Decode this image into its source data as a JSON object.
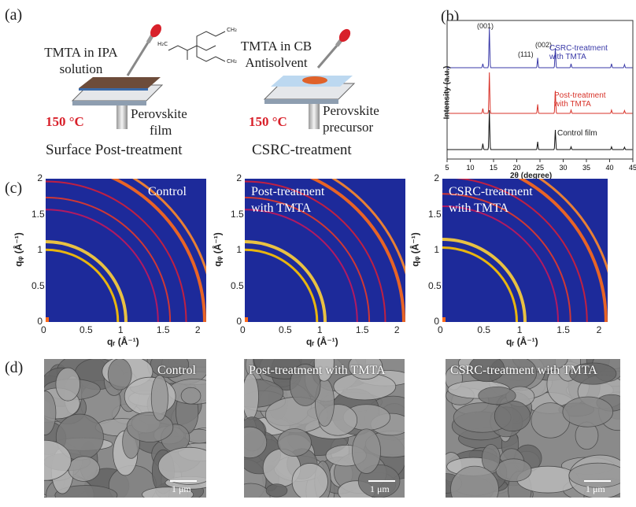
{
  "panel_labels": {
    "a": "(a)",
    "b": "(b)",
    "c": "(c)",
    "d": "(d)"
  },
  "schematic": {
    "left": {
      "solution_line1": "TMTA in IPA",
      "solution_line2": "solution",
      "film_line1": "Perovskite",
      "film_line2": "film",
      "temperature": "150 °C",
      "method": "Surface Post-treatment"
    },
    "right": {
      "antisolvent_line1": "TMTA in CB",
      "antisolvent_line2": "Antisolvent",
      "precursor_line1": "Perovskite",
      "precursor_line2": "precursor",
      "temperature": "150 °C",
      "method": "CSRC-treatment"
    },
    "molecule_labels": {
      "m1": "H₂C",
      "m2": "CH₂",
      "m3": "CH₂"
    }
  },
  "xrd": {
    "ylabel": "Intensity (a.u.)",
    "xlabel": "2θ (degree)",
    "x_ticks": [
      "5",
      "10",
      "15",
      "20",
      "25",
      "30",
      "35",
      "40",
      "45"
    ],
    "peak_labels": [
      "(001)",
      "(111)",
      "(002)"
    ],
    "series_labels": {
      "csrc_line1": "CSRC-treatment",
      "csrc_line2": "with TMTA",
      "post_line1": "Post-treatment",
      "post_line2": "with TMTA",
      "control": "Control film"
    },
    "colors": {
      "csrc": "#3a3aa8",
      "post": "#d8332a",
      "control": "#111111"
    }
  },
  "chart_data": {
    "type": "line",
    "xlabel": "2θ (degree)",
    "ylabel": "Intensity (a.u.)",
    "xlim": [
      5,
      45
    ],
    "series": [
      {
        "name": "CSRC-treatment with TMTA",
        "peaks_2theta": [
          12.7,
          14.1,
          24.5,
          28.3,
          31.7,
          40.4,
          43.2
        ],
        "peak_rel_intensity": [
          0.1,
          1.0,
          0.25,
          0.5,
          0.1,
          0.1,
          0.08
        ]
      },
      {
        "name": "Post-treatment with TMTA",
        "peaks_2theta": [
          12.7,
          14.1,
          24.5,
          28.3,
          31.7,
          40.4,
          43.2
        ],
        "peak_rel_intensity": [
          0.12,
          1.0,
          0.22,
          0.55,
          0.08,
          0.08,
          0.07
        ]
      },
      {
        "name": "Control film",
        "peaks_2theta": [
          12.7,
          14.1,
          24.5,
          28.3,
          31.7,
          40.4,
          43.2
        ],
        "peak_rel_intensity": [
          0.15,
          1.0,
          0.2,
          0.5,
          0.07,
          0.07,
          0.06
        ]
      }
    ]
  },
  "giwaxs": {
    "xlabel": "qᵣ (Å⁻¹)",
    "ylabel": "qᵩ (Å⁻¹)",
    "y_ticks": [
      "2",
      "1.5",
      "1",
      "0.5",
      "0"
    ],
    "x_ticks": [
      "0",
      "0.5",
      "1",
      "1.5",
      "2"
    ],
    "panels": [
      {
        "label_line1": "Control",
        "label_line2": ""
      },
      {
        "label_line1": "Post-treatment",
        "label_line2": "with TMTA"
      },
      {
        "label_line1": "CSRC-treatment",
        "label_line2": "with TMTA"
      }
    ]
  },
  "sem": {
    "panels": [
      {
        "label": "Control"
      },
      {
        "label": "Post-treatment with TMTA"
      },
      {
        "label": "CSRC-treatment with TMTA"
      }
    ],
    "scale_bar": "1 μm"
  }
}
